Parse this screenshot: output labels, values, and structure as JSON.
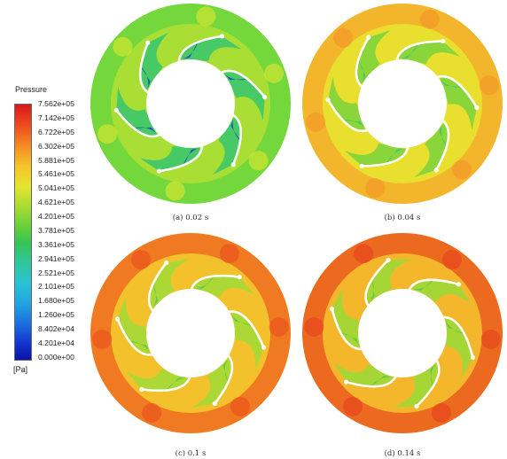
{
  "legend": {
    "title": "Pressure",
    "unit": "[Pa]",
    "labels": [
      "7.562e+05",
      "7.142e+05",
      "6.722e+05",
      "6.302e+05",
      "5.881e+05",
      "5.461e+05",
      "5.041e+05",
      "4.621e+05",
      "4.201e+05",
      "3.781e+05",
      "3.361e+05",
      "2.941e+05",
      "2.521e+05",
      "2.101e+05",
      "1.680e+05",
      "1.260e+05",
      "8.402e+04",
      "4.201e+04",
      "0.000e+00"
    ]
  },
  "panels": [
    {
      "id": "a",
      "caption": "(a) 0.02 s",
      "colors": {
        "outer": "#74d83c",
        "mid": "#a9df34",
        "passage": "#3cc86c",
        "low": "#1a3fd0",
        "patch": "#d8e631"
      }
    },
    {
      "id": "b",
      "caption": "(b) 0.04 s",
      "colors": {
        "outer": "#f3b52b",
        "mid": "#e8df2f",
        "passage": "#7fd53c",
        "low": "#36c27e",
        "patch": "#f5962a"
      }
    },
    {
      "id": "c",
      "caption": "(c) 0.1 s",
      "colors": {
        "outer": "#ef7a22",
        "mid": "#f2c12c",
        "passage": "#a3da35",
        "low": "#4cc84e",
        "patch": "#e9521e"
      }
    },
    {
      "id": "d",
      "caption": "(d) 0.14 s",
      "colors": {
        "outer": "#ec6a20",
        "mid": "#f4b72b",
        "passage": "#9dd936",
        "low": "#4cc84e",
        "patch": "#e6421c"
      }
    }
  ]
}
